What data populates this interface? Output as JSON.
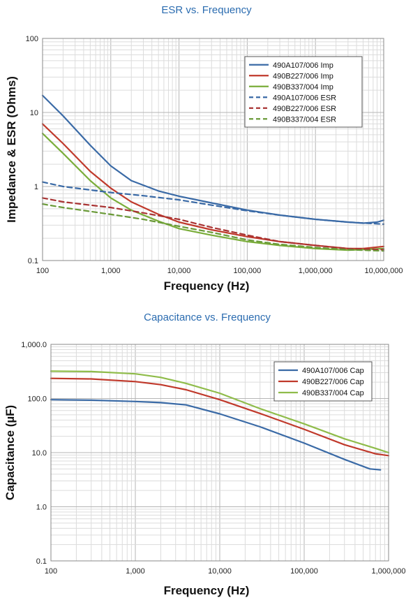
{
  "chart_data": [
    {
      "type": "line",
      "title": "ESR vs. Frequency",
      "xlabel": "Frequency (Hz)",
      "ylabel": "Impedance & ESR (Ohms)",
      "x_scale": "log",
      "y_scale": "log",
      "xlim": [
        100,
        10000000
      ],
      "ylim": [
        0.1,
        100
      ],
      "x_ticks": [
        "100",
        "1,000",
        "10,000",
        "100,000",
        "1,000,000",
        "10,000,000"
      ],
      "x_tick_values": [
        100,
        1000,
        10000,
        100000,
        1000000,
        10000000
      ],
      "y_ticks": [
        "0.1",
        "1",
        "10",
        "100"
      ],
      "y_tick_values": [
        0.1,
        1,
        10,
        100
      ],
      "grid": true,
      "legend_position": "top-right",
      "series": [
        {
          "name": "490A107/006 Imp",
          "color": "#3a6aa6",
          "dash": false,
          "points": [
            [
              100,
              17
            ],
            [
              200,
              9
            ],
            [
              500,
              3.6
            ],
            [
              1000,
              1.9
            ],
            [
              2000,
              1.2
            ],
            [
              5000,
              0.87
            ],
            [
              10000,
              0.74
            ],
            [
              30000,
              0.6
            ],
            [
              100000,
              0.48
            ],
            [
              300000,
              0.41
            ],
            [
              1000000,
              0.36
            ],
            [
              3000000,
              0.33
            ],
            [
              5000000,
              0.32
            ],
            [
              8000000,
              0.33
            ],
            [
              10000000,
              0.35
            ]
          ]
        },
        {
          "name": "490B227/006 Imp",
          "color": "#c0392b",
          "dash": false,
          "points": [
            [
              100,
              7
            ],
            [
              200,
              3.8
            ],
            [
              500,
              1.6
            ],
            [
              1000,
              0.95
            ],
            [
              2000,
              0.62
            ],
            [
              5000,
              0.42
            ],
            [
              10000,
              0.33
            ],
            [
              30000,
              0.26
            ],
            [
              100000,
              0.21
            ],
            [
              300000,
              0.18
            ],
            [
              1000000,
              0.16
            ],
            [
              3000000,
              0.145
            ],
            [
              5000000,
              0.145
            ],
            [
              10000000,
              0.155
            ]
          ]
        },
        {
          "name": "490B337/004 Imp",
          "color": "#7aad3a",
          "dash": false,
          "points": [
            [
              100,
              5.2
            ],
            [
              200,
              2.8
            ],
            [
              500,
              1.2
            ],
            [
              1000,
              0.7
            ],
            [
              2000,
              0.48
            ],
            [
              5000,
              0.34
            ],
            [
              10000,
              0.27
            ],
            [
              30000,
              0.22
            ],
            [
              100000,
              0.18
            ],
            [
              300000,
              0.16
            ],
            [
              1000000,
              0.145
            ],
            [
              3000000,
              0.138
            ],
            [
              10000000,
              0.145
            ]
          ]
        },
        {
          "name": "490A107/006 ESR",
          "color": "#3a6aa6",
          "dash": true,
          "points": [
            [
              100,
              1.15
            ],
            [
              200,
              1.0
            ],
            [
              500,
              0.9
            ],
            [
              1000,
              0.83
            ],
            [
              3000,
              0.75
            ],
            [
              10000,
              0.66
            ],
            [
              30000,
              0.56
            ],
            [
              100000,
              0.47
            ],
            [
              300000,
              0.41
            ],
            [
              1000000,
              0.36
            ],
            [
              3000000,
              0.33
            ],
            [
              10000000,
              0.31
            ]
          ]
        },
        {
          "name": "490B227/006 ESR",
          "color": "#a83232",
          "dash": true,
          "points": [
            [
              100,
              0.7
            ],
            [
              200,
              0.62
            ],
            [
              500,
              0.56
            ],
            [
              1000,
              0.52
            ],
            [
              3000,
              0.44
            ],
            [
              10000,
              0.36
            ],
            [
              30000,
              0.28
            ],
            [
              100000,
              0.22
            ],
            [
              300000,
              0.18
            ],
            [
              1000000,
              0.16
            ],
            [
              3000000,
              0.145
            ],
            [
              10000000,
              0.14
            ]
          ]
        },
        {
          "name": "490B337/004 ESR",
          "color": "#6a9a38",
          "dash": true,
          "points": [
            [
              100,
              0.58
            ],
            [
              200,
              0.52
            ],
            [
              500,
              0.46
            ],
            [
              1000,
              0.42
            ],
            [
              3000,
              0.36
            ],
            [
              10000,
              0.29
            ],
            [
              30000,
              0.24
            ],
            [
              100000,
              0.19
            ],
            [
              300000,
              0.165
            ],
            [
              1000000,
              0.15
            ],
            [
              3000000,
              0.14
            ],
            [
              10000000,
              0.135
            ]
          ]
        }
      ]
    },
    {
      "type": "line",
      "title": "Capacitance vs. Frequency",
      "xlabel": "Frequency (Hz)",
      "ylabel": "Capacitance (µF)",
      "x_scale": "log",
      "y_scale": "log",
      "xlim": [
        100,
        1000000
      ],
      "ylim": [
        0.1,
        1000
      ],
      "x_ticks": [
        "100",
        "1,000",
        "10,000",
        "100,000",
        "1,000,000"
      ],
      "x_tick_values": [
        100,
        1000,
        10000,
        100000,
        1000000
      ],
      "y_ticks": [
        "0.1",
        "1.0",
        "10.0",
        "100.0",
        "1,000.0"
      ],
      "y_tick_values": [
        0.1,
        1,
        10,
        100,
        1000
      ],
      "grid": true,
      "legend_position": "top-right",
      "series": [
        {
          "name": "490A107/006 Cap",
          "color": "#3a6aa6",
          "dash": false,
          "points": [
            [
              100,
              95
            ],
            [
              300,
              93
            ],
            [
              1000,
              88
            ],
            [
              2000,
              84
            ],
            [
              4000,
              76
            ],
            [
              10000,
              52
            ],
            [
              30000,
              30
            ],
            [
              100000,
              15
            ],
            [
              300000,
              7.5
            ],
            [
              600000,
              5
            ],
            [
              800000,
              4.8
            ]
          ]
        },
        {
          "name": "490B227/006 Cap",
          "color": "#c0392b",
          "dash": false,
          "points": [
            [
              100,
              235
            ],
            [
              300,
              230
            ],
            [
              1000,
              205
            ],
            [
              2000,
              180
            ],
            [
              4000,
              145
            ],
            [
              10000,
              95
            ],
            [
              30000,
              53
            ],
            [
              100000,
              27
            ],
            [
              300000,
              14
            ],
            [
              700000,
              9.5
            ],
            [
              1000000,
              8.8
            ]
          ]
        },
        {
          "name": "490B337/004 Cap",
          "color": "#8fbc4a",
          "dash": false,
          "points": [
            [
              100,
              320
            ],
            [
              300,
              315
            ],
            [
              1000,
              285
            ],
            [
              2000,
              245
            ],
            [
              4000,
              190
            ],
            [
              10000,
              125
            ],
            [
              30000,
              65
            ],
            [
              100000,
              34
            ],
            [
              300000,
              18
            ],
            [
              700000,
              12
            ],
            [
              1000000,
              10
            ]
          ]
        }
      ]
    }
  ]
}
